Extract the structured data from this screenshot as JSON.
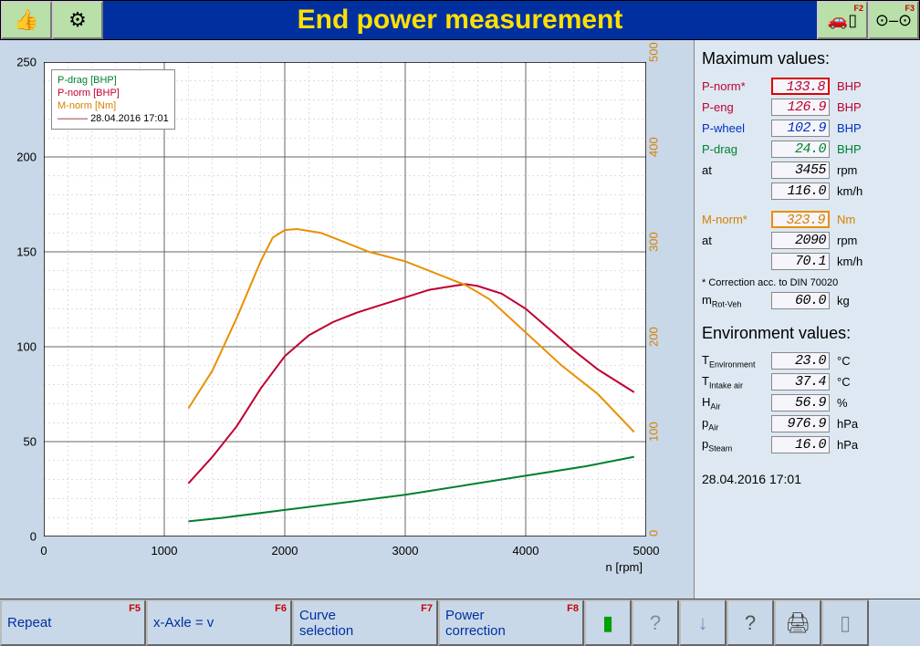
{
  "title": "End power measurement",
  "header_icons": {
    "thumb": "👍",
    "engine": "⚙"
  },
  "header_f2": "F2",
  "header_f3": "F3",
  "chart": {
    "x_label": "n [rpm]",
    "x_ticks": [
      0,
      1000,
      2000,
      3000,
      4000,
      5000
    ],
    "y_left_ticks": [
      0,
      50,
      100,
      150,
      200,
      250
    ],
    "y_right_ticks": [
      0,
      100,
      200,
      300,
      400,
      500
    ],
    "x_min": 0,
    "x_max": 5000,
    "yl_min": 0,
    "yl_max": 250,
    "yr_min": 0,
    "yr_max": 500,
    "series": {
      "p_drag": {
        "label": "P-drag [BHP]",
        "color": "#008030",
        "axis": "left",
        "pts": [
          [
            1200,
            8
          ],
          [
            1500,
            10
          ],
          [
            2000,
            14
          ],
          [
            2500,
            18
          ],
          [
            3000,
            22
          ],
          [
            3500,
            27
          ],
          [
            4000,
            32
          ],
          [
            4500,
            37
          ],
          [
            4900,
            42
          ]
        ]
      },
      "p_norm": {
        "label": "P-norm [BHP]",
        "color": "#c00030",
        "axis": "left",
        "pts": [
          [
            1200,
            28
          ],
          [
            1400,
            42
          ],
          [
            1600,
            58
          ],
          [
            1800,
            78
          ],
          [
            2000,
            95
          ],
          [
            2200,
            106
          ],
          [
            2400,
            113
          ],
          [
            2600,
            118
          ],
          [
            2800,
            122
          ],
          [
            3000,
            126
          ],
          [
            3200,
            130
          ],
          [
            3400,
            132
          ],
          [
            3500,
            133
          ],
          [
            3600,
            132
          ],
          [
            3800,
            128
          ],
          [
            4000,
            120
          ],
          [
            4200,
            109
          ],
          [
            4400,
            98
          ],
          [
            4600,
            88
          ],
          [
            4800,
            80
          ],
          [
            4900,
            76
          ]
        ]
      },
      "m_norm": {
        "label": "M-norm [Nm]",
        "color": "#e89000",
        "axis": "right",
        "pts": [
          [
            1200,
            135
          ],
          [
            1400,
            175
          ],
          [
            1600,
            230
          ],
          [
            1800,
            290
          ],
          [
            1900,
            315
          ],
          [
            2000,
            323
          ],
          [
            2100,
            324
          ],
          [
            2300,
            320
          ],
          [
            2500,
            310
          ],
          [
            2700,
            300
          ],
          [
            3000,
            290
          ],
          [
            3300,
            275
          ],
          [
            3500,
            265
          ],
          [
            3700,
            250
          ],
          [
            4000,
            215
          ],
          [
            4300,
            180
          ],
          [
            4600,
            150
          ],
          [
            4900,
            110
          ]
        ]
      }
    },
    "legend_ts_label": "28.04.2016 17:01"
  },
  "max_values_title": "Maximum values:",
  "rows": [
    {
      "lbl": "P-norm*",
      "val": "133.8",
      "unit": "BHP",
      "color": "c-red",
      "box": "hl-red"
    },
    {
      "lbl": "P-eng",
      "val": "126.9",
      "unit": "BHP",
      "color": "c-red"
    },
    {
      "lbl": "P-wheel",
      "val": "102.9",
      "unit": "BHP",
      "color": "c-blue"
    },
    {
      "lbl": "P-drag",
      "val": "24.0",
      "unit": "BHP",
      "color": "c-green"
    },
    {
      "lbl": "at",
      "val": "3455",
      "unit": "rpm",
      "color": ""
    },
    {
      "lbl": "",
      "val": "116.0",
      "unit": "km/h",
      "color": ""
    }
  ],
  "rows2": [
    {
      "lbl": "M-norm*",
      "val": "323.9",
      "unit": "Nm",
      "color": "c-orange",
      "box": "hl-orange"
    },
    {
      "lbl": "at",
      "val": "2090",
      "unit": "rpm",
      "color": ""
    },
    {
      "lbl": "",
      "val": "70.1",
      "unit": "km/h",
      "color": ""
    }
  ],
  "correction_note": "* Correction acc. to DIN 70020",
  "mrot": {
    "lbl": "m",
    "sub": "Rot-Veh",
    "val": "60.0",
    "unit": "kg"
  },
  "env_title": "Environment values:",
  "env_rows": [
    {
      "lbl": "T",
      "sub": "Environment",
      "val": "23.0",
      "unit": "°C"
    },
    {
      "lbl": "T",
      "sub": "Intake air",
      "val": "37.4",
      "unit": "°C"
    },
    {
      "lbl": "H",
      "sub": "Air",
      "val": "56.9",
      "unit": "%"
    },
    {
      "lbl": "p",
      "sub": "Air",
      "val": "976.9",
      "unit": "hPa"
    },
    {
      "lbl": "p",
      "sub": "Steam",
      "val": "16.0",
      "unit": "hPa"
    }
  ],
  "timestamp": "28.04.2016  17:01",
  "footer": [
    {
      "label": "Repeat",
      "fk": "F5",
      "w": 160
    },
    {
      "label": "x-Axle = v",
      "fk": "F6",
      "w": 160
    },
    {
      "label": "Curve\nselection",
      "fk": "F7",
      "w": 160
    },
    {
      "label": "Power\ncorrection",
      "fk": "F8",
      "w": 160
    }
  ],
  "footer_icons": [
    "▮",
    "?",
    "↓",
    "?",
    "🖨",
    "▯"
  ]
}
